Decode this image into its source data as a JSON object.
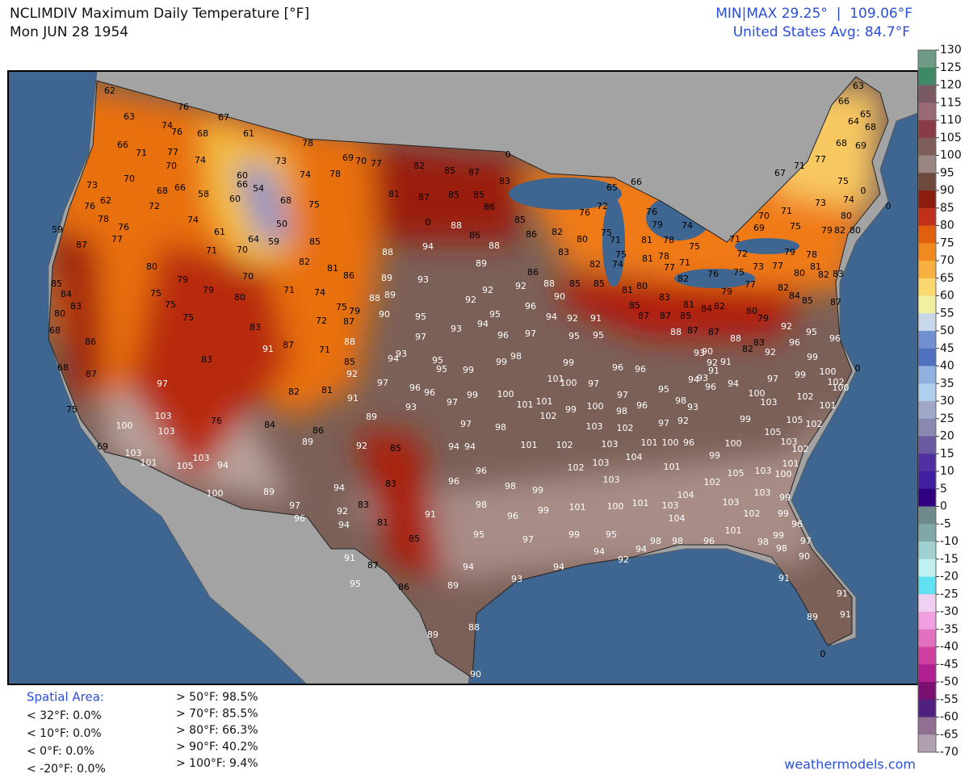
{
  "header": {
    "title": "NCLIMDIV Maximum Daily Temperature [°F]",
    "date": "Mon JUN 28 1954",
    "minmax": "MIN|MAX 29.25°  |  109.06°F",
    "average": "United States Avg: 84.7°F"
  },
  "colorbar": {
    "ticks": [
      130,
      125,
      120,
      115,
      110,
      105,
      100,
      95,
      90,
      85,
      80,
      75,
      70,
      65,
      60,
      55,
      50,
      45,
      40,
      35,
      30,
      25,
      20,
      15,
      10,
      5,
      0,
      -5,
      -10,
      -15,
      -20,
      -25,
      -30,
      -35,
      -40,
      -45,
      -50,
      -55,
      -60,
      -65,
      -70
    ],
    "colors": [
      "#6e9a86",
      "#3f8a66",
      "#7a5a62",
      "#9a6a74",
      "#8a3c46",
      "#7d5e58",
      "#9a8682",
      "#6e4a3e",
      "#8a1c10",
      "#c0301a",
      "#e06010",
      "#f08a20",
      "#f8b040",
      "#fad870",
      "#f0f0a0",
      "#c8d8e8",
      "#7090d0",
      "#5070c0",
      "#90b0e0",
      "#b0d0f0",
      "#a0a8c8",
      "#8888b0",
      "#6a5aa0",
      "#5030a0",
      "#4020a0",
      "#300080",
      "#6e8a8a",
      "#80a8a8",
      "#a0d0d0",
      "#c0f0f0",
      "#60e0f0",
      "#f0d0f0",
      "#f0a0e0",
      "#e070c0",
      "#d040a0",
      "#b02090",
      "#7a1070",
      "#502080",
      "#907090",
      "#b0a0b0"
    ]
  },
  "stats": {
    "title": "Spatial Area:",
    "left": [
      "< 32°F: 0.0%",
      "< 10°F: 0.0%",
      "< 0°F: 0.0%",
      "< -20°F: 0.0%"
    ],
    "right": [
      "> 50°F: 98.5%",
      "> 70°F: 85.5%",
      "> 80°F: 66.3%",
      "> 90°F: 40.2%",
      "> 100°F: 9.4%"
    ]
  },
  "footer": "weathermodels.com",
  "stations": [
    62,
    63,
    76,
    74,
    76,
    68,
    67,
    61,
    66,
    71,
    77,
    70,
    74,
    73,
    70,
    68,
    66,
    58,
    60,
    66,
    54,
    60,
    62,
    76,
    78,
    76,
    72,
    74,
    61,
    64,
    70,
    59,
    50,
    68,
    73,
    78,
    74,
    75,
    59,
    87,
    77,
    80,
    71,
    85,
    82,
    81,
    86,
    70,
    79,
    80,
    75,
    75,
    85,
    84,
    83,
    80,
    68,
    86,
    68,
    87,
    75,
    69,
    79,
    75,
    83,
    91,
    87,
    71,
    72,
    74,
    71,
    79,
    75,
    87,
    88,
    85,
    92,
    91,
    82,
    81,
    83,
    97,
    100,
    103,
    103,
    103,
    101,
    105,
    103,
    94,
    76,
    84,
    86,
    89,
    89,
    92,
    85,
    100,
    89,
    97,
    96,
    94,
    92,
    94,
    83,
    83,
    81,
    85,
    91,
    91,
    87,
    95,
    86,
    89,
    94,
    93,
    94,
    89,
    88,
    90,
    78,
    69,
    70,
    77,
    81,
    82,
    85,
    87,
    83,
    0,
    87,
    85,
    85,
    86,
    0,
    88,
    86,
    88,
    94,
    88,
    89,
    89,
    93,
    88,
    89,
    90,
    95,
    92,
    92,
    92,
    86,
    88,
    90,
    85,
    85,
    96,
    95,
    94,
    94,
    92,
    91,
    93,
    97,
    96,
    97,
    95,
    95,
    94,
    93,
    95,
    95,
    99,
    99,
    98,
    99,
    96,
    96,
    97,
    96,
    96,
    97,
    99,
    100,
    101,
    101,
    101,
    100,
    97,
    93,
    97,
    98,
    102,
    99,
    100,
    97,
    98,
    96,
    95,
    98,
    93,
    94,
    94,
    101,
    102,
    103,
    102,
    97,
    92,
    101,
    100,
    96,
    103,
    96,
    96,
    98,
    99,
    102,
    103,
    104,
    101,
    103,
    98,
    96,
    99,
    101,
    100,
    101,
    104,
    104,
    103,
    95,
    97,
    99,
    95,
    94,
    94,
    92,
    98,
    98,
    96,
    65,
    66,
    76,
    72,
    82,
    80,
    75,
    71,
    76,
    79,
    81,
    75,
    78,
    74,
    85,
    86,
    83,
    82,
    74,
    81,
    80,
    78,
    77,
    71,
    75,
    82,
    81,
    85,
    83,
    87,
    87,
    85,
    81,
    84,
    82,
    76,
    79,
    75,
    77,
    73,
    77,
    80,
    79,
    69,
    70,
    71,
    75,
    72,
    71,
    78,
    81,
    82,
    83,
    79,
    82,
    80,
    80,
    74,
    75,
    73,
    67,
    71,
    77,
    68,
    69,
    66,
    63,
    65,
    64,
    68,
    82,
    84,
    85,
    87,
    80,
    79,
    92,
    95,
    96,
    88,
    87,
    87,
    88,
    83,
    82,
    92,
    90,
    92,
    91,
    93,
    91,
    94,
    93,
    96,
    94,
    97,
    96,
    99,
    99,
    100,
    102,
    100,
    100,
    103,
    102,
    101,
    99,
    105,
    102,
    105,
    103,
    102,
    101,
    103,
    100,
    100,
    99,
    105,
    102,
    103,
    103,
    99,
    102,
    99,
    101,
    99,
    96,
    98,
    98,
    97,
    90,
    91,
    91,
    91,
    89,
    0,
    0,
    0,
    0
  ]
}
